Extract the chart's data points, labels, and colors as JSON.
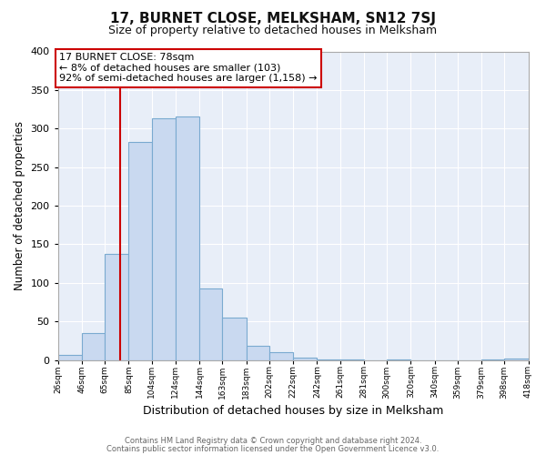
{
  "title": "17, BURNET CLOSE, MELKSHAM, SN12 7SJ",
  "subtitle": "Size of property relative to detached houses in Melksham",
  "xlabel": "Distribution of detached houses by size in Melksham",
  "ylabel": "Number of detached properties",
  "bar_color": "#c9d9f0",
  "bar_edge_color": "#7aaad0",
  "bin_edges": [
    26,
    46,
    65,
    85,
    104,
    124,
    144,
    163,
    183,
    202,
    222,
    242,
    261,
    281,
    300,
    320,
    340,
    359,
    379,
    398,
    418
  ],
  "bin_labels": [
    "26sqm",
    "46sqm",
    "65sqm",
    "85sqm",
    "104sqm",
    "124sqm",
    "144sqm",
    "163sqm",
    "183sqm",
    "202sqm",
    "222sqm",
    "242sqm",
    "261sqm",
    "281sqm",
    "300sqm",
    "320sqm",
    "340sqm",
    "359sqm",
    "379sqm",
    "398sqm",
    "418sqm"
  ],
  "counts": [
    7,
    35,
    137,
    283,
    313,
    316,
    93,
    55,
    19,
    10,
    3,
    1,
    1,
    0,
    1,
    0,
    0,
    0,
    1,
    2
  ],
  "vline_x": 78,
  "vline_color": "#cc0000",
  "annotation_title": "17 BURNET CLOSE: 78sqm",
  "annotation_line1": "← 8% of detached houses are smaller (103)",
  "annotation_line2": "92% of semi-detached houses are larger (1,158) →",
  "annotation_box_color": "#ffffff",
  "annotation_box_edge": "#cc0000",
  "ylim": [
    0,
    400
  ],
  "yticks": [
    0,
    50,
    100,
    150,
    200,
    250,
    300,
    350,
    400
  ],
  "footer1": "Contains HM Land Registry data © Crown copyright and database right 2024.",
  "footer2": "Contains public sector information licensed under the Open Government Licence v3.0.",
  "plot_bg_color": "#e8eef8",
  "fig_bg_color": "#ffffff",
  "grid_color": "#ffffff"
}
